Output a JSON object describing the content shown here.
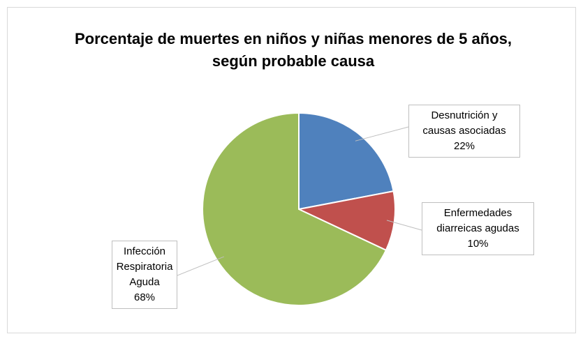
{
  "chart_data": {
    "type": "pie",
    "title": "Porcentaje de muertes en niños y niñas menores de 5 años, según probable causa",
    "categories": [
      "Desnutrición y causas asociadas",
      "Enfermedades diarreicas agudas",
      "Infección Respiratoria Aguda"
    ],
    "values": [
      22,
      10,
      68
    ],
    "value_labels": [
      "22%",
      "10%",
      "68%"
    ],
    "colors": [
      "#4f81bd",
      "#c0504d",
      "#9bbb59"
    ]
  }
}
